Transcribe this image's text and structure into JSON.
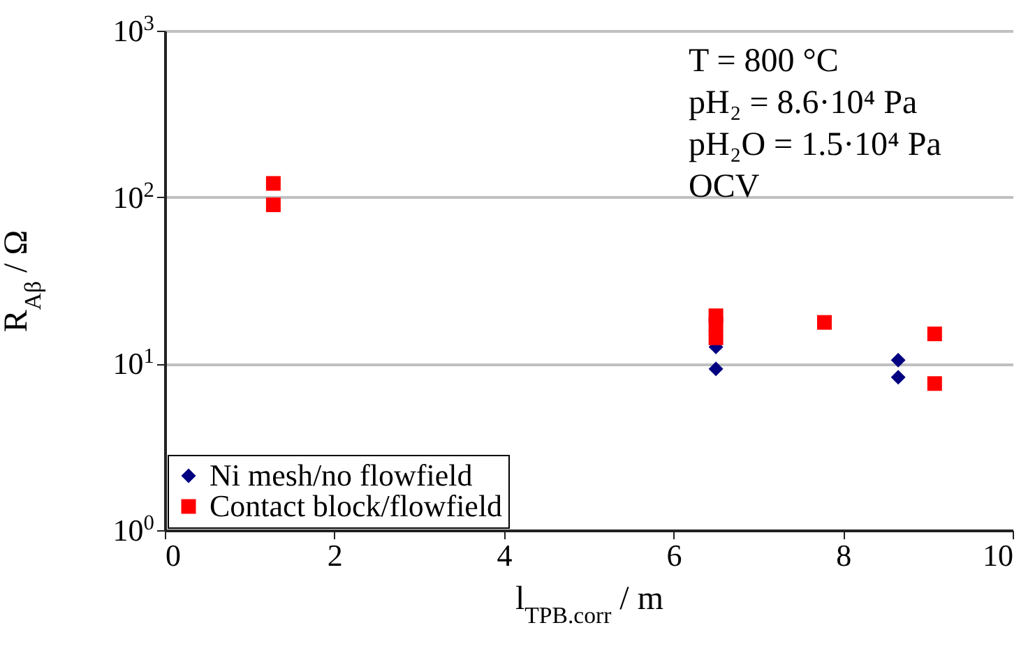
{
  "chart_data": {
    "type": "scatter",
    "xlabel": "l$_{TPB.corr}$ / m",
    "ylabel": "R$_{Aβ}$ / Ω",
    "annotations": [
      "T = 800 °C",
      "pH₂ = 8.6·10⁴ Pa",
      "pH₂O = 1.5·10⁴ Pa",
      "OCV"
    ],
    "series": [
      {
        "name": "Ni mesh/no flowfield",
        "color": "#000080",
        "marker": "diamond",
        "x": [
          6.5,
          6.5,
          8.65,
          8.65
        ],
        "values": [
          12.6,
          9.3,
          10.5,
          8.3
        ]
      },
      {
        "name": "Contact block/flowfield",
        "color": "#ff0000",
        "marker": "square",
        "x": [
          1.28,
          1.28,
          6.5,
          6.5,
          6.5,
          7.78,
          9.08,
          9.08
        ],
        "values": [
          121,
          90,
          19.4,
          17.3,
          14.3,
          17.7,
          15.1,
          7.6
        ]
      }
    ],
    "xlim": [
      0,
      10
    ],
    "xticks": [
      0,
      2,
      4,
      6,
      8,
      10
    ],
    "ylim": [
      1,
      1000
    ],
    "yticks": [
      {
        "value": 1,
        "label": "10$^{0}$"
      },
      {
        "value": 10,
        "label": "10$^{1}$"
      },
      {
        "value": 100,
        "label": "10$^{2}$"
      },
      {
        "value": 1000,
        "label": "10$^{3}$"
      }
    ],
    "log": "y",
    "grid": "y",
    "legend": "bottom left"
  }
}
